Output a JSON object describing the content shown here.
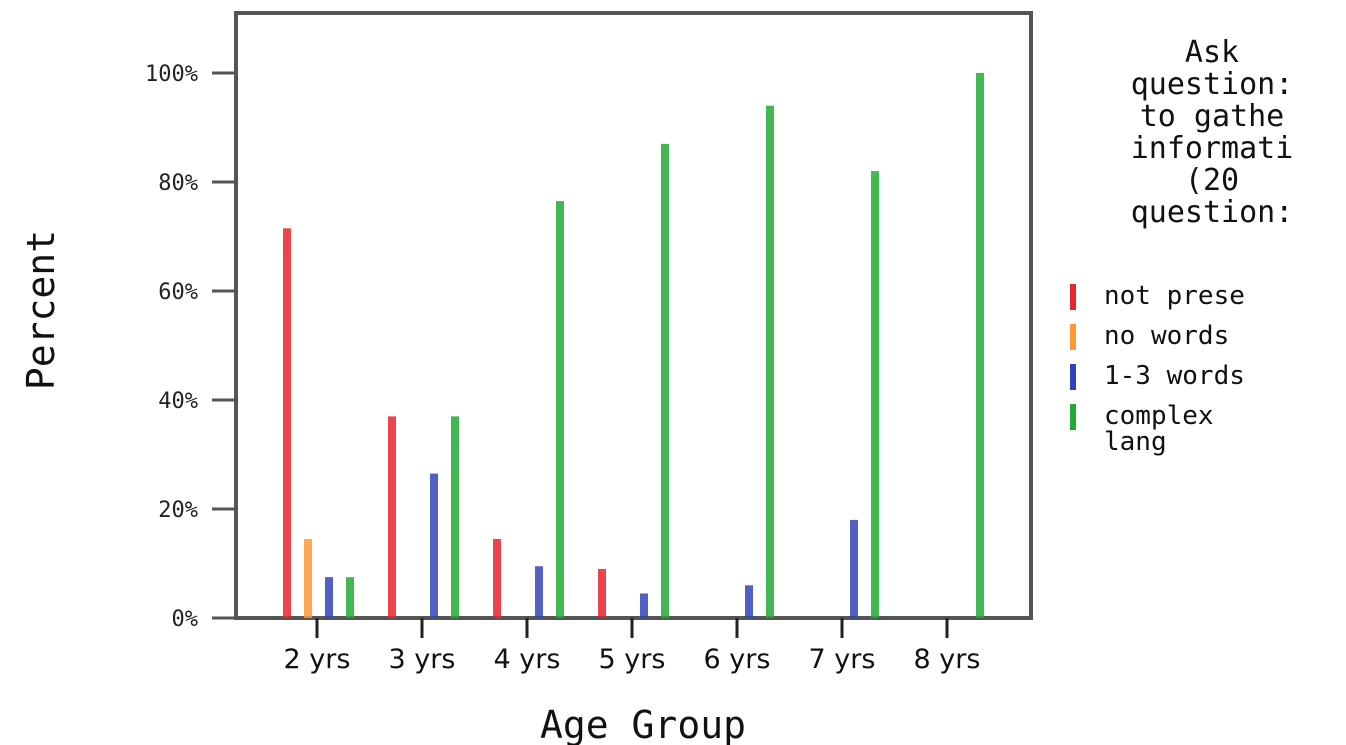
{
  "chart_data": {
    "type": "bar",
    "categories": [
      "2 yrs",
      "3 yrs",
      "4 yrs",
      "5 yrs",
      "6 yrs",
      "7 yrs",
      "8 yrs"
    ],
    "series": [
      {
        "name": "not present",
        "color": "#e8242c",
        "values": [
          71.5,
          37,
          14.5,
          9,
          0,
          0,
          0
        ]
      },
      {
        "name": "no words",
        "color": "#ff9933",
        "values": [
          14.5,
          0,
          0,
          0,
          0,
          0,
          0
        ]
      },
      {
        "name": "1-3 words",
        "color": "#3344bb",
        "values": [
          7.5,
          26.5,
          9.5,
          4.5,
          6,
          18,
          0
        ]
      },
      {
        "name": "complex lang",
        "color": "#22aa33",
        "values": [
          7.5,
          37,
          76.5,
          87,
          94,
          82,
          100
        ]
      }
    ],
    "title": "",
    "xlabel": "Age Group",
    "ylabel": "Percent",
    "ylim": [
      0,
      100
    ],
    "yticks": [
      "0%",
      "20%",
      "40%",
      "60%",
      "80%",
      "100%"
    ],
    "grid": false,
    "legend": {
      "placement": "right",
      "title_lines": [
        "Ask",
        "question:",
        "to gathe",
        "informati",
        "(20",
        "question:"
      ],
      "entries": [
        "not prese",
        "no words",
        "1-3 words",
        "complex\nlang"
      ]
    }
  }
}
